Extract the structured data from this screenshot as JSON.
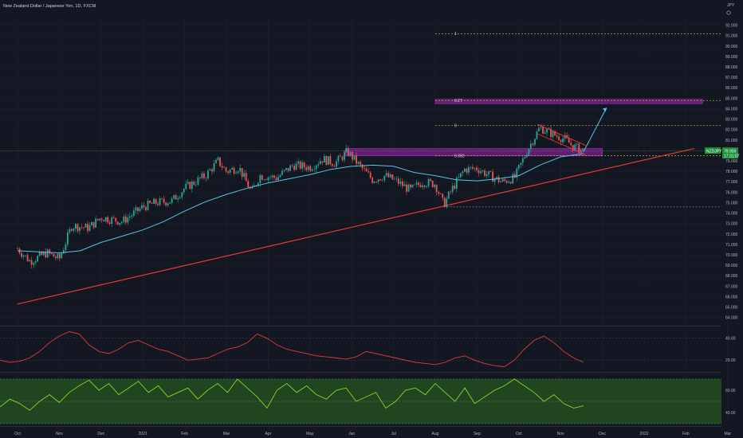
{
  "title": "New Zealand Dollar / Japanese Yen, 1D, FXCM",
  "currency_label": "JPY",
  "symbol": "NZDJPY",
  "last_price": "79.959",
  "countdown": "17:31:07",
  "colors": {
    "background": "#131722",
    "up": "#26a69a",
    "down": "#ef5350",
    "ma": "#56c4e8",
    "trendline": "#e53935",
    "zone": "#9c27b0",
    "fib": "#e6c34a",
    "osc1": "#e53935",
    "osc2": "#8bd42a",
    "osc_band": "#2e6b1e",
    "price_badge": "#1e8f3b"
  },
  "annotations": {
    "fib_1": "1",
    "fib_027": "0.27",
    "fib_0": "0",
    "fib_0382": "0.382"
  },
  "chart_data": [
    {
      "type": "candlestick",
      "x_axis_labels": [
        "Oct",
        "Nov",
        "Dec",
        "2021",
        "Feb",
        "Mar",
        "Apr",
        "May",
        "Jun",
        "Jul",
        "Aug",
        "Sep",
        "Oct",
        "Nov",
        "Dec",
        "2022",
        "Feb",
        "Mar"
      ],
      "y_axis_labels": [
        "64.000",
        "65.000",
        "66.000",
        "67.000",
        "68.000",
        "69.000",
        "70.000",
        "71.000",
        "72.000",
        "73.000",
        "74.000",
        "75.000",
        "76.000",
        "77.000",
        "78.000",
        "79.000",
        "80.000",
        "81.000",
        "82.000",
        "83.000",
        "84.000",
        "85.000",
        "86.000",
        "87.000",
        "88.000",
        "89.000",
        "90.000",
        "91.000",
        "92.000"
      ],
      "ylim": [
        63.3,
        92.9
      ],
      "close_path": [
        {
          "month": 0,
          "value": 70.6
        },
        {
          "month": 0.3,
          "value": 69.4
        },
        {
          "month": 0.7,
          "value": 70.2
        },
        {
          "month": 1.0,
          "value": 69.6
        },
        {
          "month": 1.3,
          "value": 72.8
        },
        {
          "month": 1.7,
          "value": 72.6
        },
        {
          "month": 2.0,
          "value": 73.6
        },
        {
          "month": 2.5,
          "value": 73.2
        },
        {
          "month": 3.0,
          "value": 74.6
        },
        {
          "month": 3.3,
          "value": 75.0
        },
        {
          "month": 3.7,
          "value": 75.2
        },
        {
          "month": 4.0,
          "value": 76.4
        },
        {
          "month": 4.5,
          "value": 77.6
        },
        {
          "month": 4.8,
          "value": 79.0
        },
        {
          "month": 5.0,
          "value": 78.0
        },
        {
          "month": 5.3,
          "value": 78.4
        },
        {
          "month": 5.6,
          "value": 76.0
        },
        {
          "month": 5.8,
          "value": 77.6
        },
        {
          "month": 6.2,
          "value": 77.4
        },
        {
          "month": 6.6,
          "value": 78.6
        },
        {
          "month": 7.0,
          "value": 78.4
        },
        {
          "month": 7.3,
          "value": 79.2
        },
        {
          "month": 7.6,
          "value": 78.8
        },
        {
          "month": 7.9,
          "value": 79.9
        },
        {
          "month": 8.2,
          "value": 78.5
        },
        {
          "month": 8.5,
          "value": 77.2
        },
        {
          "month": 8.8,
          "value": 77.6
        },
        {
          "month": 9.1,
          "value": 77.0
        },
        {
          "month": 9.4,
          "value": 76.2
        },
        {
          "month": 9.7,
          "value": 77.0
        },
        {
          "month": 10.0,
          "value": 76.8
        },
        {
          "month": 10.2,
          "value": 74.8
        },
        {
          "month": 10.4,
          "value": 76.3
        },
        {
          "month": 10.7,
          "value": 78.2
        },
        {
          "month": 11.0,
          "value": 78.3
        },
        {
          "month": 11.3,
          "value": 77.6
        },
        {
          "month": 11.6,
          "value": 77.0
        },
        {
          "month": 11.9,
          "value": 77.4
        },
        {
          "month": 12.2,
          "value": 80.0
        },
        {
          "month": 12.5,
          "value": 82.2
        },
        {
          "month": 12.8,
          "value": 81.6
        },
        {
          "month": 13.1,
          "value": 81.1
        },
        {
          "month": 13.3,
          "value": 80.4
        },
        {
          "month": 13.55,
          "value": 79.96
        }
      ],
      "ma_path": [
        {
          "month": 0,
          "value": 70.4
        },
        {
          "month": 1.0,
          "value": 70.2
        },
        {
          "month": 1.5,
          "value": 70.4
        },
        {
          "month": 2.0,
          "value": 71.2
        },
        {
          "month": 2.5,
          "value": 71.8
        },
        {
          "month": 3.0,
          "value": 72.4
        },
        {
          "month": 3.5,
          "value": 73.2
        },
        {
          "month": 4.0,
          "value": 74.2
        },
        {
          "month": 4.5,
          "value": 75.1
        },
        {
          "month": 5.0,
          "value": 75.8
        },
        {
          "month": 5.5,
          "value": 76.4
        },
        {
          "month": 6.0,
          "value": 76.9
        },
        {
          "month": 6.5,
          "value": 77.3
        },
        {
          "month": 7.0,
          "value": 77.7
        },
        {
          "month": 7.5,
          "value": 78.2
        },
        {
          "month": 8.0,
          "value": 78.5
        },
        {
          "month": 8.5,
          "value": 78.6
        },
        {
          "month": 9.0,
          "value": 78.5
        },
        {
          "month": 9.5,
          "value": 77.9
        },
        {
          "month": 10.0,
          "value": 77.6
        },
        {
          "month": 10.5,
          "value": 77.2
        },
        {
          "month": 11.0,
          "value": 77.1
        },
        {
          "month": 11.5,
          "value": 77.3
        },
        {
          "month": 12.0,
          "value": 77.6
        },
        {
          "month": 12.5,
          "value": 78.6
        },
        {
          "month": 13.0,
          "value": 79.4
        },
        {
          "month": 13.55,
          "value": 79.7
        }
      ],
      "trendline": {
        "from": {
          "month": 0,
          "value": 65.3
        },
        "to": {
          "month": 16.2,
          "value": 80.2
        }
      },
      "zones": [
        {
          "from_month": 7.85,
          "to_month": 14.0,
          "low": 79.5,
          "high": 80.2
        },
        {
          "from_month": 10.0,
          "to_month": 16.4,
          "low": 84.5,
          "high": 84.9
        }
      ],
      "fib_levels": [
        {
          "label_key": "fib_1",
          "value": 91.2,
          "from_month": 10.0
        },
        {
          "label_key": "fib_027",
          "value": 84.8,
          "from_month": 10.0
        },
        {
          "label_key": "fib_0",
          "value": 82.4,
          "from_month": 10.0
        },
        {
          "label_key": "fib_0382",
          "value": 79.5,
          "from_month": 10.0
        },
        {
          "label_key": null,
          "value": 74.6,
          "from_month": 10.2
        }
      ],
      "projection_arrow": {
        "from": {
          "month": 13.55,
          "value": 79.9
        },
        "to": {
          "month": 14.1,
          "value": 84.1
        }
      },
      "channel": [
        {
          "from": {
            "month": 12.45,
            "value": 82.5
          },
          "to": {
            "month": 13.6,
            "value": 80.5
          }
        },
        {
          "from": {
            "month": 12.45,
            "value": 81.6
          },
          "to": {
            "month": 13.6,
            "value": 79.6
          }
        }
      ]
    },
    {
      "type": "line",
      "y_axis_labels": [
        "40.00",
        "20.00"
      ],
      "ylim": [
        10,
        50
      ],
      "series": [
        {
          "values": [
            20,
            18,
            19,
            22,
            28,
            36,
            42,
            46,
            44,
            34,
            28,
            26,
            30,
            36,
            38,
            34,
            30,
            28,
            24,
            20,
            21,
            22,
            26,
            30,
            32,
            36,
            44,
            40,
            34,
            30,
            28,
            26,
            24,
            23,
            22,
            21,
            23,
            28,
            26,
            24,
            22,
            20,
            18,
            17,
            16,
            18,
            22,
            24,
            20,
            17,
            15,
            14,
            20,
            30,
            38,
            42,
            36,
            28,
            22,
            18
          ]
        }
      ]
    },
    {
      "type": "line",
      "y_axis_labels": [
        "60.00",
        "40.00"
      ],
      "ylim": [
        30,
        75
      ],
      "series": [
        {
          "values": [
            45,
            52,
            48,
            42,
            50,
            56,
            49,
            58,
            64,
            69,
            60,
            66,
            56,
            62,
            68,
            58,
            64,
            54,
            58,
            62,
            52,
            60,
            66,
            58,
            70,
            62,
            54,
            44,
            60,
            66,
            58,
            64,
            56,
            52,
            60,
            62,
            50,
            54,
            58,
            44,
            50,
            60,
            62,
            56,
            66,
            58,
            50,
            62,
            48,
            54,
            60,
            64,
            70,
            64,
            58,
            50,
            56,
            48,
            44,
            46
          ]
        }
      ]
    }
  ]
}
